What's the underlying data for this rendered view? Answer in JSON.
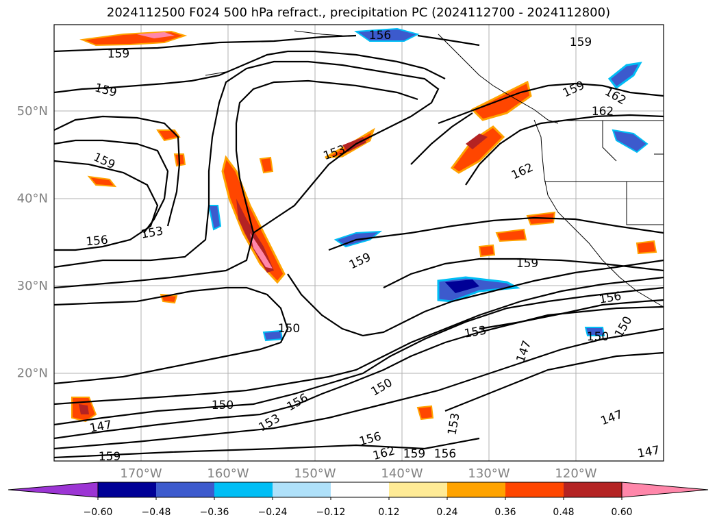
{
  "title": "2024112500 F024 500 hPa refract., precipitation PC (2024112700 - 2024112800)",
  "lat_labels": [
    {
      "text": "50°N",
      "value": 50
    },
    {
      "text": "40°N",
      "value": 40
    },
    {
      "text": "30°N",
      "value": 30
    },
    {
      "text": "20°N",
      "value": 20
    }
  ],
  "lon_labels": [
    {
      "text": "170°W",
      "value": -170
    },
    {
      "text": "160°W",
      "value": -160
    },
    {
      "text": "150°W",
      "value": -150
    },
    {
      "text": "140°W",
      "value": -140
    },
    {
      "text": "130°W",
      "value": -130
    },
    {
      "text": "120°W",
      "value": -120
    }
  ],
  "contour_labels": [
    "159",
    "156",
    "159",
    "159",
    "159",
    "159",
    "162",
    "162",
    "153",
    "162",
    "156",
    "153",
    "159",
    "159",
    "156",
    "150",
    "150",
    "150",
    "153",
    "150",
    "147",
    "147",
    "153",
    "156",
    "150",
    "147",
    "153",
    "156",
    "162",
    "159",
    "156",
    "159",
    "147"
  ],
  "colorbar": {
    "ticks": [
      "−0.60",
      "−0.48",
      "−0.36",
      "−0.24",
      "−0.12",
      "0.12",
      "0.24",
      "0.36",
      "0.48",
      "0.60"
    ],
    "colors": [
      "#9c35d4",
      "#000096",
      "#3c5acd",
      "#00bef5",
      "#afe1fa",
      "#ffffff",
      "#ffeb96",
      "#ffa300",
      "#ff4600",
      "#b42323",
      "#ff87aa"
    ]
  }
}
